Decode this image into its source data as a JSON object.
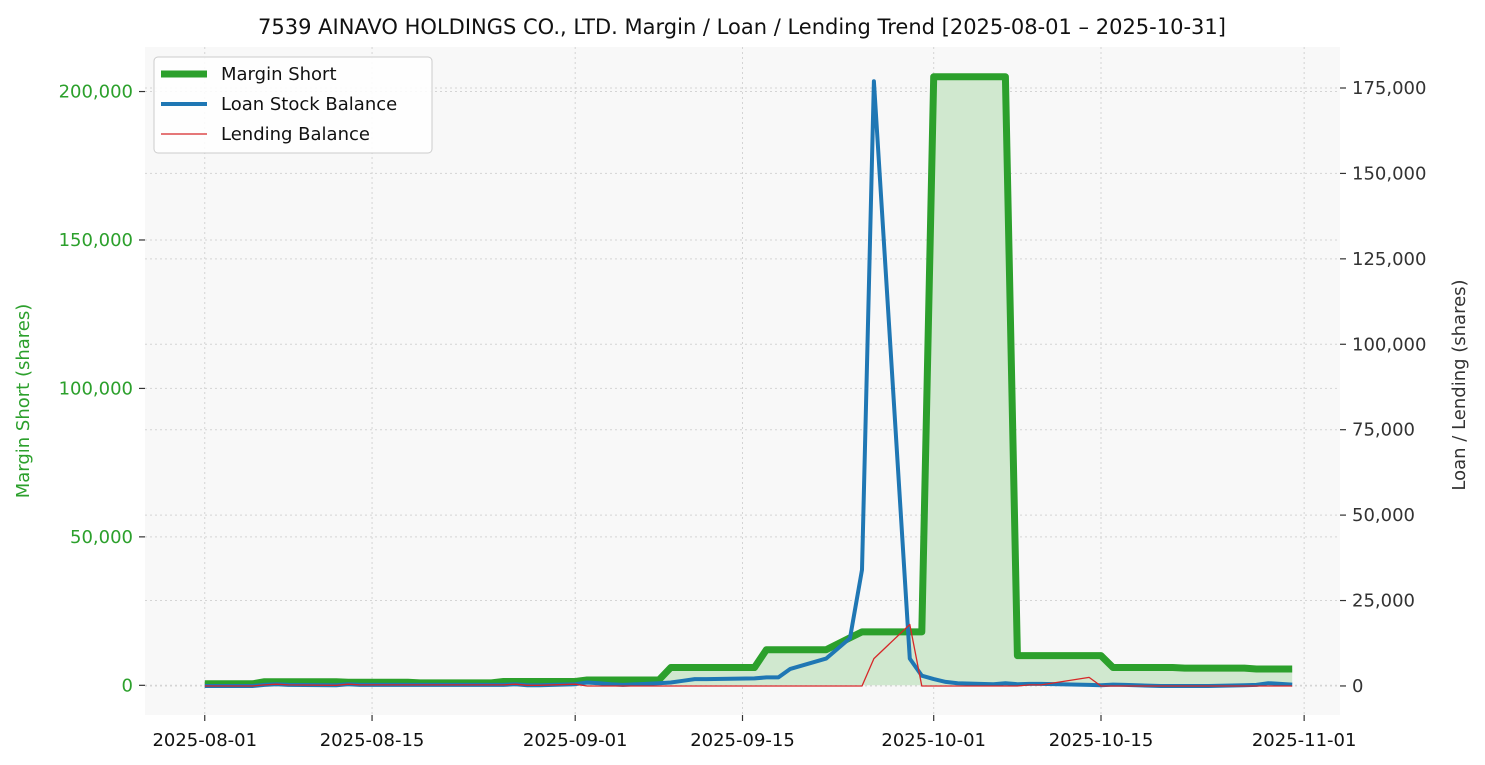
{
  "chart_data": {
    "type": "line",
    "title": "7539 AINAVO HOLDINGS CO., LTD. Margin / Loan / Lending Trend [2025-08-01 – 2025-10-31]",
    "ylabel_left": "Margin Short (shares)",
    "ylabel_right": "Loan / Lending (shares)",
    "ylim_left": [
      -10000,
      215000
    ],
    "ylim_right": [
      -8500,
      187000
    ],
    "xlim": [
      "2025-07-27",
      "2025-11-04"
    ],
    "yticks_left": [
      0,
      50000,
      100000,
      150000,
      200000
    ],
    "ytick_labels_left": [
      "0",
      "50,000",
      "100,000",
      "150,000",
      "200,000"
    ],
    "yticks_right": [
      0,
      25000,
      50000,
      75000,
      100000,
      125000,
      150000,
      175000
    ],
    "ytick_labels_right": [
      "0",
      "25,000",
      "50,000",
      "75,000",
      "100,000",
      "125,000",
      "150,000",
      "175,000"
    ],
    "xticks": [
      "2025-08-01",
      "2025-08-15",
      "2025-09-01",
      "2025-09-15",
      "2025-10-01",
      "2025-10-15",
      "2025-11-01"
    ],
    "grid": true,
    "legend_position": "top-left",
    "series": [
      {
        "name": "Margin Short",
        "axis": "left",
        "color": "#2ca02c",
        "fill": "#d0e8cf",
        "x": [
          "2025-08-01",
          "2025-08-04",
          "2025-08-05",
          "2025-08-06",
          "2025-08-07",
          "2025-08-08",
          "2025-08-12",
          "2025-08-13",
          "2025-08-14",
          "2025-08-15",
          "2025-08-18",
          "2025-08-19",
          "2025-08-20",
          "2025-08-21",
          "2025-08-22",
          "2025-08-25",
          "2025-08-26",
          "2025-08-27",
          "2025-08-28",
          "2025-08-29",
          "2025-09-01",
          "2025-09-02",
          "2025-09-03",
          "2025-09-04",
          "2025-09-05",
          "2025-09-08",
          "2025-09-09",
          "2025-09-10",
          "2025-09-11",
          "2025-09-12",
          "2025-09-16",
          "2025-09-17",
          "2025-09-18",
          "2025-09-19",
          "2025-09-22",
          "2025-09-24",
          "2025-09-25",
          "2025-09-26",
          "2025-09-29",
          "2025-09-30",
          "2025-10-01",
          "2025-10-02",
          "2025-10-03",
          "2025-10-06",
          "2025-10-07",
          "2025-10-08",
          "2025-10-09",
          "2025-10-10",
          "2025-10-14",
          "2025-10-15",
          "2025-10-16",
          "2025-10-17",
          "2025-10-20",
          "2025-10-21",
          "2025-10-22",
          "2025-10-23",
          "2025-10-24",
          "2025-10-27",
          "2025-10-28",
          "2025-10-29",
          "2025-10-30",
          "2025-10-31"
        ],
        "y": [
          500,
          500,
          500,
          1200,
          1200,
          1200,
          1200,
          1000,
          1000,
          1000,
          1000,
          800,
          800,
          800,
          800,
          800,
          1300,
          1300,
          1300,
          1300,
          1300,
          1800,
          1800,
          1800,
          1800,
          1800,
          6000,
          6000,
          6000,
          6000,
          6000,
          12000,
          12000,
          12000,
          12000,
          16000,
          18000,
          18000,
          18000,
          18000,
          205000,
          205000,
          205000,
          205000,
          205000,
          10000,
          10000,
          10000,
          10000,
          10000,
          6000,
          6000,
          6000,
          6000,
          5800,
          5800,
          5800,
          5800,
          5500,
          5500,
          5500,
          5500
        ]
      },
      {
        "name": "Loan Stock Balance",
        "axis": "right",
        "color": "#1f77b4",
        "x": [
          "2025-08-01",
          "2025-08-04",
          "2025-08-05",
          "2025-08-06",
          "2025-08-07",
          "2025-08-08",
          "2025-08-12",
          "2025-08-13",
          "2025-08-14",
          "2025-08-15",
          "2025-08-18",
          "2025-08-19",
          "2025-08-20",
          "2025-08-21",
          "2025-08-22",
          "2025-08-25",
          "2025-08-26",
          "2025-08-27",
          "2025-08-28",
          "2025-08-29",
          "2025-09-01",
          "2025-09-02",
          "2025-09-03",
          "2025-09-04",
          "2025-09-05",
          "2025-09-08",
          "2025-09-09",
          "2025-09-10",
          "2025-09-11",
          "2025-09-12",
          "2025-09-16",
          "2025-09-17",
          "2025-09-18",
          "2025-09-19",
          "2025-09-22",
          "2025-09-24",
          "2025-09-25",
          "2025-09-26",
          "2025-09-29",
          "2025-09-30",
          "2025-10-01",
          "2025-10-02",
          "2025-10-03",
          "2025-10-06",
          "2025-10-07",
          "2025-10-08",
          "2025-10-09",
          "2025-10-10",
          "2025-10-14",
          "2025-10-15",
          "2025-10-16",
          "2025-10-17",
          "2025-10-20",
          "2025-10-21",
          "2025-10-22",
          "2025-10-23",
          "2025-10-24",
          "2025-10-27",
          "2025-10-28",
          "2025-10-29",
          "2025-10-30",
          "2025-10-31"
        ],
        "y": [
          0,
          0,
          0,
          300,
          500,
          300,
          200,
          500,
          300,
          300,
          300,
          300,
          300,
          300,
          300,
          300,
          300,
          500,
          200,
          200,
          500,
          1000,
          800,
          500,
          300,
          800,
          1000,
          1500,
          2000,
          2000,
          2200,
          2500,
          2500,
          5000,
          8000,
          14000,
          34000,
          177000,
          8000,
          3000,
          2000,
          1200,
          800,
          500,
          800,
          500,
          600,
          600,
          300,
          200,
          400,
          300,
          0,
          0,
          0,
          0,
          0,
          200,
          300,
          800,
          600,
          400
        ]
      },
      {
        "name": "Lending Balance",
        "axis": "right",
        "color": "#d62728",
        "x": [
          "2025-08-01",
          "2025-08-04",
          "2025-08-05",
          "2025-08-06",
          "2025-08-07",
          "2025-08-08",
          "2025-08-12",
          "2025-08-13",
          "2025-08-14",
          "2025-08-15",
          "2025-08-18",
          "2025-08-19",
          "2025-08-20",
          "2025-08-21",
          "2025-08-22",
          "2025-08-25",
          "2025-08-26",
          "2025-08-27",
          "2025-08-28",
          "2025-08-29",
          "2025-09-01",
          "2025-09-02",
          "2025-09-03",
          "2025-09-04",
          "2025-09-05",
          "2025-09-08",
          "2025-09-09",
          "2025-09-10",
          "2025-09-11",
          "2025-09-12",
          "2025-09-16",
          "2025-09-17",
          "2025-09-18",
          "2025-09-19",
          "2025-09-22",
          "2025-09-24",
          "2025-09-25",
          "2025-09-26",
          "2025-09-29",
          "2025-09-30",
          "2025-10-01",
          "2025-10-02",
          "2025-10-03",
          "2025-10-06",
          "2025-10-07",
          "2025-10-08",
          "2025-10-09",
          "2025-10-10",
          "2025-10-14",
          "2025-10-15",
          "2025-10-16",
          "2025-10-17",
          "2025-10-20",
          "2025-10-21",
          "2025-10-22",
          "2025-10-23",
          "2025-10-24",
          "2025-10-27",
          "2025-10-28",
          "2025-10-29",
          "2025-10-30",
          "2025-10-31"
        ],
        "y": [
          0,
          0,
          0,
          300,
          500,
          300,
          200,
          500,
          300,
          300,
          300,
          300,
          300,
          300,
          300,
          300,
          300,
          500,
          200,
          200,
          500,
          0,
          0,
          0,
          0,
          0,
          0,
          0,
          0,
          0,
          0,
          0,
          0,
          0,
          0,
          0,
          0,
          8000,
          18000,
          0,
          0,
          0,
          0,
          0,
          0,
          0,
          300,
          300,
          2500,
          0,
          0,
          0,
          0,
          0,
          0,
          0,
          0,
          0,
          0,
          0,
          0,
          0
        ]
      }
    ]
  }
}
